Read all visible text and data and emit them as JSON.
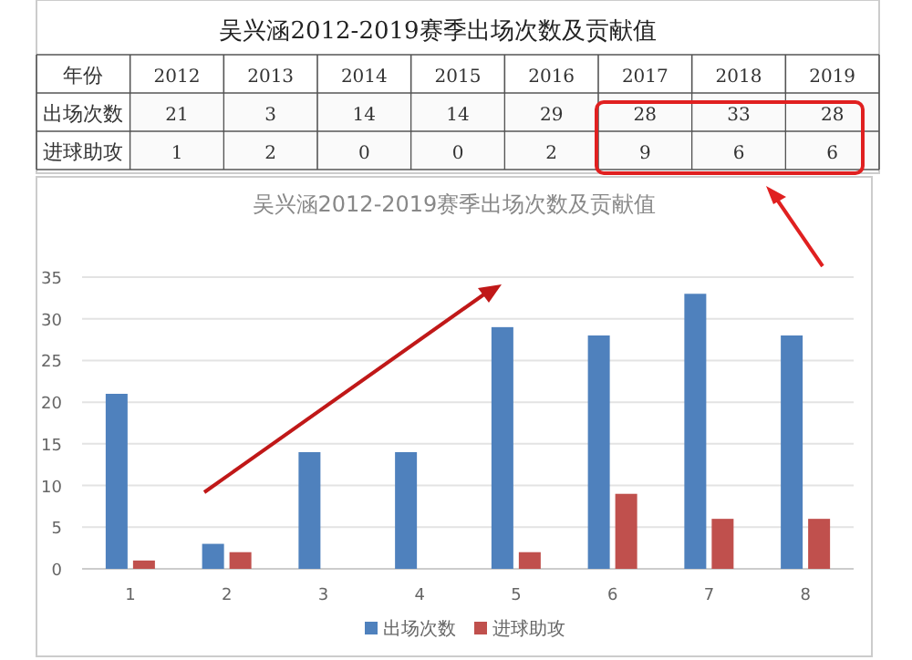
{
  "chart_data": [
    {
      "type": "heatmap",
      "title": "吴兴涵2012-2019赛季出场次数及贡献值",
      "categories": [
        "2012",
        "2013",
        "2014",
        "2015",
        "2016",
        "2017",
        "2018",
        "2019"
      ],
      "y_categories": [
        "出场次数",
        "进球助攻"
      ],
      "cells": [
        [
          21,
          3,
          14,
          14,
          29,
          28,
          33,
          28
        ],
        [
          1,
          2,
          0,
          0,
          2,
          9,
          6,
          6
        ]
      ],
      "data_labels": true,
      "annotations": [
        "年份"
      ]
    },
    {
      "type": "bar",
      "title": "吴兴涵2012-2019赛季出场次数及贡献值",
      "categories": [
        "1",
        "2",
        "3",
        "4",
        "5",
        "6",
        "7",
        "8"
      ],
      "series": [
        {
          "name": "出场次数",
          "color": "#4f81bd",
          "values": [
            21,
            3,
            14,
            14,
            29,
            28,
            33,
            28
          ]
        },
        {
          "name": "进球助攻",
          "color": "#c0504d",
          "values": [
            1,
            2,
            0,
            0,
            2,
            9,
            6,
            6
          ]
        }
      ],
      "ylim": [
        0,
        35
      ],
      "yticks": [
        0,
        5,
        10,
        15,
        20,
        25,
        30,
        35
      ],
      "grid": "y",
      "legend": "bottom"
    }
  ]
}
